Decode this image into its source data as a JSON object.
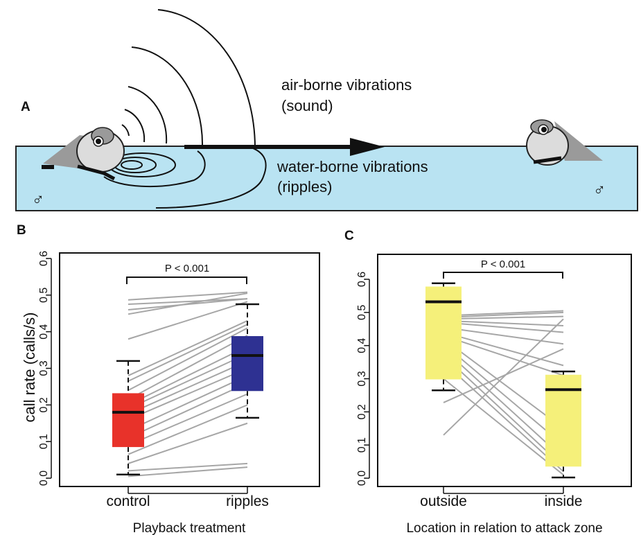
{
  "panel_a": {
    "label": "A",
    "air_label_1": "air-borne vibrations",
    "air_label_2": "(sound)",
    "water_label_1": "water-borne vibrations",
    "water_label_2": "(ripples)",
    "male_symbol": "♂",
    "colors": {
      "water": "#b9e3f2",
      "frog_body": "#9a9a9a",
      "frog_belly": "#dcdcdc",
      "arrow": "#111111"
    }
  },
  "chart_data": [
    {
      "panel": "B",
      "type": "box",
      "xlabel": "Playback treatment",
      "ylabel": "call rate (calls/s)",
      "ylim": [
        0,
        0.6
      ],
      "yticks": [
        "0.0",
        "0.1",
        "0.2",
        "0.3",
        "0.4",
        "0.5",
        "0.6"
      ],
      "categories": [
        "control",
        "ripples"
      ],
      "significance": "P < 0.001",
      "boxes": [
        {
          "category": "control",
          "color": "#e8322a",
          "whisker_low": 0.01,
          "q1": 0.085,
          "median": 0.18,
          "q3": 0.232,
          "whisker_high": 0.32
        },
        {
          "category": "ripples",
          "color": "#2e3192",
          "whisker_low": 0.165,
          "q1": 0.238,
          "median": 0.335,
          "q3": 0.388,
          "whisker_high": 0.475
        }
      ],
      "paired_lines": [
        [
          0.487,
          0.508
        ],
        [
          0.475,
          0.49
        ],
        [
          0.46,
          0.49
        ],
        [
          0.448,
          0.505
        ],
        [
          0.38,
          0.482
        ],
        [
          0.28,
          0.43
        ],
        [
          0.265,
          0.42
        ],
        [
          0.24,
          0.41
        ],
        [
          0.215,
          0.39
        ],
        [
          0.2,
          0.36
        ],
        [
          0.19,
          0.34
        ],
        [
          0.175,
          0.32
        ],
        [
          0.16,
          0.3
        ],
        [
          0.13,
          0.28
        ],
        [
          0.11,
          0.26
        ],
        [
          0.09,
          0.23
        ],
        [
          0.065,
          0.2
        ],
        [
          0.04,
          0.15
        ],
        [
          0.02,
          0.04
        ],
        [
          0.005,
          0.03
        ]
      ]
    },
    {
      "panel": "C",
      "type": "box",
      "xlabel": "Location in relation to attack zone",
      "ylabel": "",
      "ylim": [
        0,
        0.6
      ],
      "yticks": [
        "0.0",
        "0.1",
        "0.2",
        "0.3",
        "0.4",
        "0.5",
        "0.6"
      ],
      "categories": [
        "outside",
        "inside"
      ],
      "significance": "P < 0.001",
      "boxes": [
        {
          "category": "outside",
          "color": "#f5f07a",
          "whisker_low": 0.265,
          "q1": 0.298,
          "median": 0.532,
          "q3": 0.578,
          "whisker_high": 0.588
        },
        {
          "category": "inside",
          "color": "#f5f07a",
          "whisker_low": 0.002,
          "q1": 0.035,
          "median": 0.267,
          "q3": 0.312,
          "whisker_high": 0.322
        }
      ],
      "paired_lines": [
        [
          0.49,
          0.505
        ],
        [
          0.485,
          0.5
        ],
        [
          0.48,
          0.488
        ],
        [
          0.475,
          0.46
        ],
        [
          0.47,
          0.44
        ],
        [
          0.455,
          0.405
        ],
        [
          0.44,
          0.34
        ],
        [
          0.43,
          0.31
        ],
        [
          0.42,
          0.15
        ],
        [
          0.405,
          0.1
        ],
        [
          0.39,
          0.06
        ],
        [
          0.37,
          0.035
        ],
        [
          0.35,
          0.02
        ],
        [
          0.3,
          0.01
        ],
        [
          0.228,
          0.39
        ],
        [
          0.13,
          0.48
        ]
      ]
    }
  ]
}
